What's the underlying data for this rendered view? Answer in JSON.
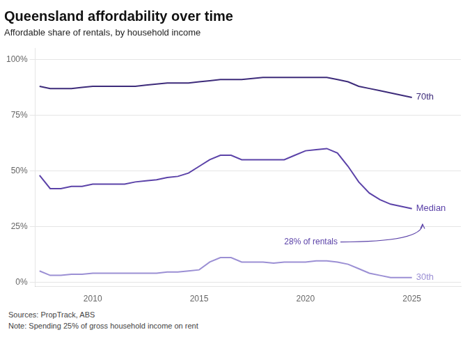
{
  "chart_data": {
    "type": "line",
    "title": "Queensland affordability over time",
    "subtitle": "Affordable share of rentals, by household income",
    "footer": [
      "Sources: PropTrack, ABS",
      "Note: Spending 25% of gross household income on rent"
    ],
    "x": [
      2007.5,
      2008,
      2008.5,
      2009,
      2009.5,
      2010,
      2010.5,
      2011,
      2011.5,
      2012,
      2012.5,
      2013,
      2013.5,
      2014,
      2014.5,
      2015,
      2015.5,
      2016,
      2016.5,
      2017,
      2017.5,
      2018,
      2018.5,
      2019,
      2019.5,
      2020,
      2020.5,
      2021,
      2021.5,
      2022,
      2022.5,
      2023,
      2023.5,
      2024,
      2024.5,
      2025
    ],
    "series": [
      {
        "name": "70th",
        "color": "#3d2b7a",
        "values": [
          88,
          87,
          87,
          87,
          87.5,
          88,
          88,
          88,
          88,
          88,
          88.5,
          89,
          89.5,
          89.5,
          89.5,
          90,
          90.5,
          91,
          91,
          91,
          91.5,
          92,
          92,
          92,
          92,
          92,
          92,
          92,
          91,
          90,
          88,
          87,
          86,
          85,
          84,
          83
        ]
      },
      {
        "name": "Median",
        "color": "#5b42a8",
        "values": [
          48,
          42,
          42,
          43,
          43,
          44,
          44,
          44,
          44,
          45,
          45.5,
          46,
          47,
          47.5,
          49,
          52,
          55,
          57,
          57,
          55,
          55,
          55,
          55,
          55,
          57,
          59,
          59.5,
          60,
          58,
          52,
          45,
          40,
          37,
          35,
          34,
          33
        ]
      },
      {
        "name": "30th",
        "color": "#9b8fd4",
        "values": [
          5,
          3,
          3,
          3.5,
          3.5,
          4,
          4,
          4,
          4,
          4,
          4,
          4,
          4.5,
          4.5,
          5,
          5.5,
          9,
          11,
          11,
          9,
          9,
          9,
          8.5,
          9,
          9,
          9,
          9.5,
          9.5,
          9,
          8,
          6,
          4,
          3,
          2,
          2,
          2
        ]
      }
    ],
    "annotations": [
      {
        "text": "28% of rentals",
        "x": 2019.0,
        "y": 18,
        "arrow_x": 2025.5,
        "arrow_y": 26,
        "color": "#5b42a8"
      }
    ],
    "xlim": [
      2007.3,
      2027.3
    ],
    "xticks": [
      2010,
      2015,
      2020,
      2025
    ],
    "ylim": [
      -2,
      105
    ],
    "yticks": [
      {
        "value": 0,
        "label": "0%"
      },
      {
        "value": 25,
        "label": "25%"
      },
      {
        "value": 50,
        "label": "50%"
      },
      {
        "value": 75,
        "label": "75%"
      },
      {
        "value": 100,
        "label": "100%"
      }
    ],
    "grid": "y"
  }
}
